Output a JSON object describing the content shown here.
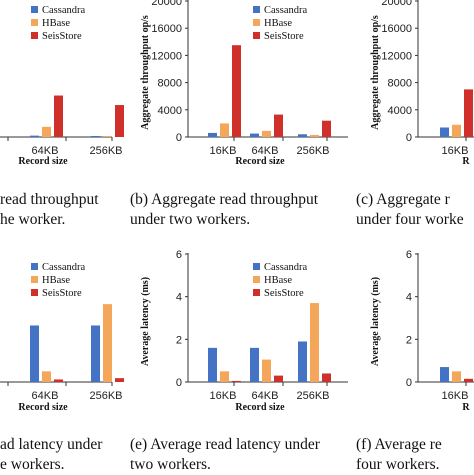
{
  "colors": {
    "Cassandra": "#4472c4",
    "HBase": "#f4a65a",
    "SeisStore": "#d0302a",
    "axis": "#333333"
  },
  "chart_data": [
    {
      "type": "bar",
      "panel": "a",
      "caption": [
        "read throughput",
        "he worker."
      ],
      "xlabel": "Record size",
      "ylabel": "",
      "categories": [
        "64KB",
        "256KB"
      ],
      "ylim": [
        0,
        20000
      ],
      "yticks": [],
      "legend": [
        "Cassandra",
        "HBase",
        "SeisStore"
      ],
      "legend_position": "top-left",
      "series": [
        {
          "name": "Cassandra",
          "values": [
            200,
            150
          ]
        },
        {
          "name": "HBase",
          "values": [
            1500,
            150
          ]
        },
        {
          "name": "SeisStore",
          "values": [
            6100,
            4700
          ]
        }
      ]
    },
    {
      "type": "bar",
      "panel": "b",
      "caption": [
        "(b) Aggregate read throughput",
        "under two workers."
      ],
      "xlabel": "Record size",
      "ylabel": "Aggregate throughput op/s",
      "categories": [
        "16KB",
        "64KB",
        "256KB"
      ],
      "ylim": [
        0,
        20000
      ],
      "yticks": [
        "0",
        "4000",
        "8000",
        "12000",
        "16000",
        "20000"
      ],
      "legend": [
        "Cassandra",
        "HBase",
        "SeisStore"
      ],
      "legend_position": "top-right",
      "series": [
        {
          "name": "Cassandra",
          "values": [
            600,
            500,
            400
          ]
        },
        {
          "name": "HBase",
          "values": [
            2000,
            900,
            300
          ]
        },
        {
          "name": "SeisStore",
          "values": [
            13500,
            3300,
            2400
          ]
        }
      ]
    },
    {
      "type": "bar",
      "panel": "c",
      "caption": [
        "(c) Aggregate r",
        "under four worke"
      ],
      "xlabel": "R",
      "ylabel": "Aggregate throughput op/s",
      "categories": [
        "16KB"
      ],
      "ylim": [
        0,
        20000
      ],
      "yticks": [
        "0",
        "4000",
        "8000",
        "12000",
        "16000",
        "20000"
      ],
      "legend": [],
      "series": [
        {
          "name": "Cassandra",
          "values": [
            1400
          ]
        },
        {
          "name": "HBase",
          "values": [
            1800
          ]
        },
        {
          "name": "SeisStore",
          "values": [
            7000
          ]
        }
      ]
    },
    {
      "type": "bar",
      "panel": "d",
      "caption": [
        "ad latency under",
        "e workers."
      ],
      "xlabel": "Record size",
      "ylabel": "",
      "categories": [
        "64KB",
        "256KB"
      ],
      "ylim": [
        0,
        6
      ],
      "yticks": [],
      "legend": [
        "Cassandra",
        "HBase",
        "SeisStore"
      ],
      "legend_position": "top-left",
      "series": [
        {
          "name": "Cassandra",
          "values": [
            2.65,
            2.65
          ]
        },
        {
          "name": "HBase",
          "values": [
            0.5,
            3.65
          ]
        },
        {
          "name": "SeisStore",
          "values": [
            0.12,
            0.18
          ]
        }
      ]
    },
    {
      "type": "bar",
      "panel": "e",
      "caption": [
        "(e) Average read latency under",
        "two workers."
      ],
      "xlabel": "Record size",
      "ylabel": "Average latency (ms)",
      "categories": [
        "16KB",
        "64KB",
        "256KB"
      ],
      "ylim": [
        0,
        6
      ],
      "yticks": [
        "0",
        "2",
        "4",
        "6"
      ],
      "legend": [
        "Cassandra",
        "HBase",
        "SeisStore"
      ],
      "legend_position": "top-right",
      "series": [
        {
          "name": "Cassandra",
          "values": [
            1.6,
            1.6,
            1.9
          ]
        },
        {
          "name": "HBase",
          "values": [
            0.5,
            1.05,
            3.7
          ]
        },
        {
          "name": "SeisStore",
          "values": [
            0.05,
            0.3,
            0.4
          ]
        }
      ]
    },
    {
      "type": "bar",
      "panel": "f",
      "caption": [
        "(f) Average re",
        "four workers."
      ],
      "xlabel": "R",
      "ylabel": "Average latency (ms)",
      "categories": [
        "16KB"
      ],
      "ylim": [
        0,
        6
      ],
      "yticks": [
        "0",
        "2",
        "4",
        "6"
      ],
      "legend": [],
      "series": [
        {
          "name": "Cassandra",
          "values": [
            0.7
          ]
        },
        {
          "name": "HBase",
          "values": [
            0.5
          ]
        },
        {
          "name": "SeisStore",
          "values": [
            0.15
          ]
        }
      ]
    }
  ]
}
